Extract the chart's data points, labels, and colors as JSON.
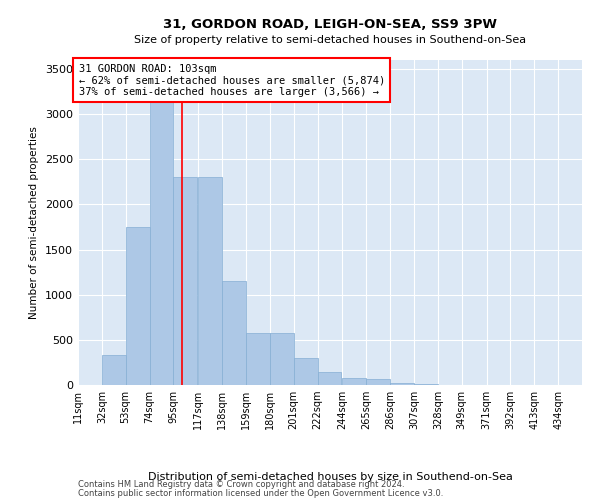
{
  "title": "31, GORDON ROAD, LEIGH-ON-SEA, SS9 3PW",
  "subtitle": "Size of property relative to semi-detached houses in Southend-on-Sea",
  "xlabel": "Distribution of semi-detached houses by size in Southend-on-Sea",
  "ylabel": "Number of semi-detached properties",
  "footer_line1": "Contains HM Land Registry data © Crown copyright and database right 2024.",
  "footer_line2": "Contains public sector information licensed under the Open Government Licence v3.0.",
  "annotation_line1": "31 GORDON ROAD: 103sqm",
  "annotation_line2": "← 62% of semi-detached houses are smaller (5,874)",
  "annotation_line3": "37% of semi-detached houses are larger (3,566) →",
  "bar_color": "#adc8e6",
  "bar_edge_color": "#85aed4",
  "bg_color": "#dce8f5",
  "red_line_x": 103,
  "categories": [
    "11sqm",
    "32sqm",
    "53sqm",
    "74sqm",
    "95sqm",
    "117sqm",
    "138sqm",
    "159sqm",
    "180sqm",
    "201sqm",
    "222sqm",
    "244sqm",
    "265sqm",
    "286sqm",
    "307sqm",
    "328sqm",
    "349sqm",
    "371sqm",
    "392sqm",
    "413sqm",
    "434sqm"
  ],
  "values": [
    5,
    330,
    1750,
    3200,
    2300,
    2300,
    1150,
    580,
    575,
    295,
    145,
    75,
    65,
    20,
    8,
    4,
    2,
    2,
    1,
    0,
    0
  ],
  "bin_edges": [
    11,
    32,
    53,
    74,
    95,
    117,
    138,
    159,
    180,
    201,
    222,
    244,
    265,
    286,
    307,
    328,
    349,
    371,
    392,
    413,
    434,
    455
  ],
  "ylim": [
    0,
    3600
  ],
  "yticks": [
    0,
    500,
    1000,
    1500,
    2000,
    2500,
    3000,
    3500
  ]
}
